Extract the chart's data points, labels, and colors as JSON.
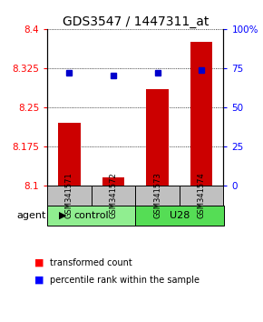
{
  "title": "GDS3547 / 1447311_at",
  "samples": [
    "GSM341571",
    "GSM341572",
    "GSM341573",
    "GSM341574"
  ],
  "bar_values": [
    8.22,
    8.115,
    8.285,
    8.375
  ],
  "percentile_values": [
    72,
    70,
    72,
    74
  ],
  "ylim_left": [
    8.1,
    8.4
  ],
  "yticks_left": [
    8.1,
    8.175,
    8.25,
    8.325,
    8.4
  ],
  "ytick_labels_left": [
    "8.1",
    "8.175",
    "8.25",
    "8.325",
    "8.4"
  ],
  "yticks_right": [
    0,
    25,
    50,
    75,
    100
  ],
  "ytick_labels_right": [
    "0",
    "25",
    "50",
    "75",
    "100%"
  ],
  "bar_color": "#CC0000",
  "dot_color": "#0000CC",
  "bar_width": 0.5,
  "bar_base": 8.1,
  "sample_box_color": "#C0C0C0",
  "group_control_color": "#90EE90",
  "group_u28_color": "#55DD55",
  "legend_red": "transformed count",
  "legend_blue": "percentile rank within the sample",
  "title_fontsize": 10,
  "tick_fontsize": 7.5,
  "sample_fontsize": 6,
  "group_fontsize": 8,
  "legend_fontsize": 7
}
